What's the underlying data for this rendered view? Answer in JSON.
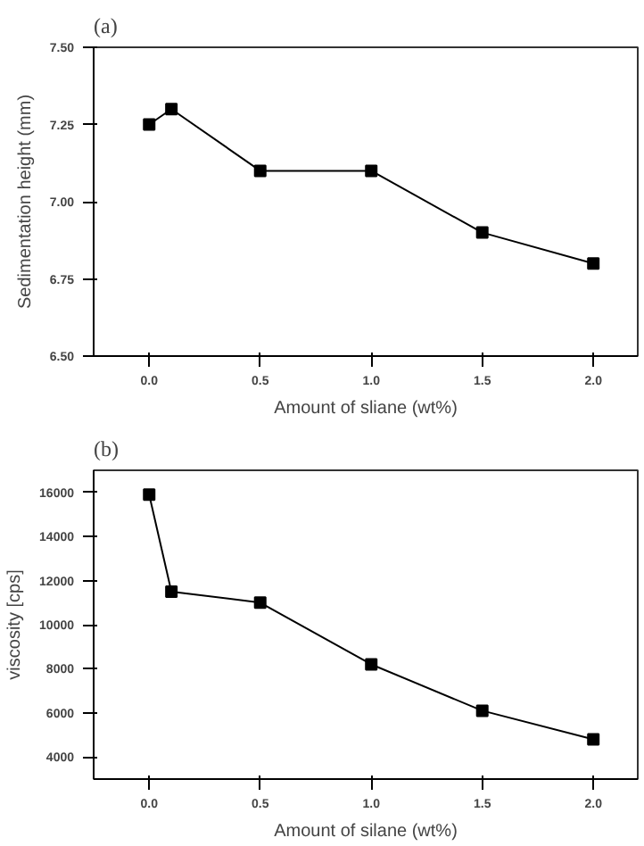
{
  "chart_data": [
    {
      "type": "line",
      "title": "(a)",
      "xlabel": "Amount of sliane (wt%)",
      "ylabel": "Sedimentation height (mm)",
      "x": [
        0.0,
        0.1,
        0.5,
        1.0,
        1.5,
        2.0
      ],
      "series": [
        {
          "color": "#000000",
          "values": [
            7.25,
            7.3,
            7.1,
            7.1,
            6.9,
            6.8
          ]
        }
      ],
      "xlim": [
        -0.25,
        2.2
      ],
      "xticks": [
        {
          "value": 0,
          "label": "0.0"
        },
        {
          "value": 0.5,
          "label": "0.5"
        },
        {
          "value": 1,
          "label": "1.0"
        },
        {
          "value": 1.5,
          "label": "1.5"
        },
        {
          "value": 2,
          "label": "2.0"
        }
      ],
      "ylim": [
        6.5,
        7.5
      ],
      "yticks": [
        {
          "value": 6.5,
          "label": "6.50"
        },
        {
          "value": 6.75,
          "label": "6.75"
        },
        {
          "value": 7,
          "label": "7.00"
        },
        {
          "value": 7.25,
          "label": "7.25"
        },
        {
          "value": 7.5,
          "label": "7.50"
        }
      ],
      "marker": "square",
      "grid": false
    },
    {
      "type": "line",
      "title": "(b)",
      "xlabel": "Amount of silane (wt%)",
      "ylabel": "viscosity [cps]",
      "x": [
        0.0,
        0.1,
        0.5,
        1.0,
        1.5,
        2.0
      ],
      "series": [
        {
          "color": "#000000",
          "values": [
            15900,
            11500,
            11000,
            8200,
            6100,
            4800
          ]
        }
      ],
      "xlim": [
        -0.25,
        2.2
      ],
      "xticks": [
        {
          "value": 0,
          "label": "0.0"
        },
        0.5,
        {
          "value": 1,
          "label": "1.0"
        },
        1.5,
        {
          "value": 2,
          "label": "2.0"
        }
      ],
      "ylim": [
        3000,
        17000
      ],
      "yticks": [
        4000,
        6000,
        8000,
        10000,
        12000,
        14000,
        16000
      ],
      "marker": "square",
      "grid": false
    }
  ]
}
